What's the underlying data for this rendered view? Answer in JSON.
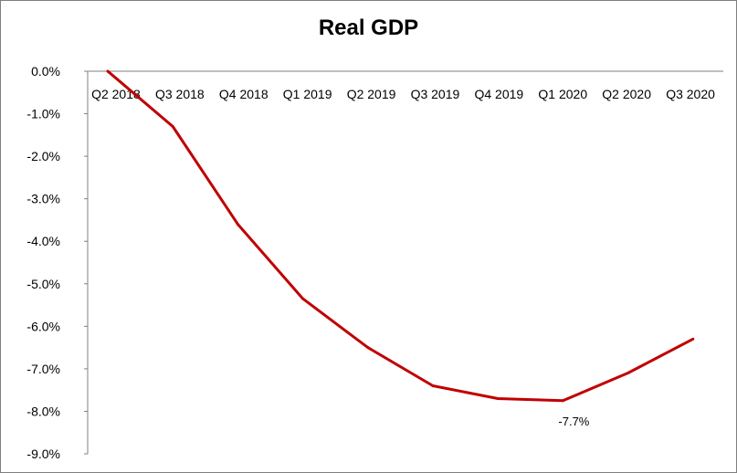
{
  "chart_data": {
    "type": "line",
    "title": "Real GDP",
    "xlabel": "",
    "ylabel": "",
    "categories": [
      "Q2 2018",
      "Q3 2018",
      "Q4 2018",
      "Q1 2019",
      "Q2 2019",
      "Q3 2019",
      "Q4 2019",
      "Q1 2020",
      "Q2 2020",
      "Q3 2020"
    ],
    "ylim": [
      -9.0,
      0.0
    ],
    "yticks": [
      0,
      -1,
      -2,
      -3,
      -4,
      -5,
      -6,
      -7,
      -8,
      -9
    ],
    "ytick_labels": [
      "0.0%",
      "-1.0%",
      "-2.0%",
      "-3.0%",
      "-4.0%",
      "-5.0%",
      "-6.0%",
      "-7.0%",
      "-8.0%",
      "-9.0%"
    ],
    "series": [
      {
        "values": [
          0.0,
          -1.3,
          -3.6,
          -5.35,
          -6.5,
          -7.4,
          -7.7,
          -7.75,
          -7.1,
          -6.3
        ],
        "color": "#c00000"
      }
    ],
    "annotations": [
      {
        "category_index": 7,
        "text": "-7.7%"
      }
    ],
    "grid": false,
    "legend": "none"
  }
}
